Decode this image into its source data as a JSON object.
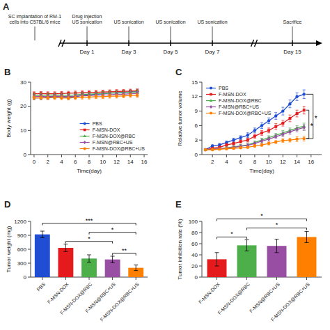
{
  "chart_data": [
    {
      "type": "timeline",
      "title": "A",
      "categories": [
        null,
        "Day 1",
        "Day 3",
        "Day 5",
        "Day 7",
        "Day 15"
      ],
      "annotations": [
        "SC implantation of RM-1\ncells into C57BL/6 mice",
        "Drug injection\nUS sonication",
        "US sonication",
        "US sonication",
        "US sonication",
        "Sacrifice"
      ]
    },
    {
      "type": "line",
      "title": "B",
      "xlabel": "Time(day)",
      "ylabel": "Body weight (g)",
      "x": [
        0,
        1,
        2,
        3,
        4,
        5,
        6,
        7,
        8,
        9,
        10,
        11,
        12,
        13,
        14,
        15
      ],
      "xlim": [
        -0.5,
        16.5
      ],
      "ylim": [
        0,
        30
      ],
      "xticks": [
        0,
        2,
        4,
        6,
        8,
        10,
        12,
        14,
        16
      ],
      "yticks": [
        0,
        10,
        20,
        30
      ],
      "grid": false,
      "legend": "lower right",
      "series": [
        {
          "name": "PBS",
          "color": "#1f4dd4",
          "marker": "circle",
          "values": [
            23.5,
            23.5,
            23.8,
            24.0,
            24.0,
            23.8,
            24.0,
            24.5,
            24.8,
            25.0,
            25.2,
            25.5,
            25.5,
            25.8,
            26.0,
            26.0
          ],
          "errors": [
            0.8,
            0.8,
            0.8,
            0.8,
            0.8,
            0.8,
            0.8,
            0.8,
            0.8,
            0.8,
            0.8,
            0.8,
            0.8,
            0.8,
            0.8,
            0.8
          ]
        },
        {
          "name": "F-MSN-DOX",
          "color": "#e41a1c",
          "marker": "square",
          "values": [
            25.2,
            25.3,
            25.2,
            25.2,
            25.3,
            25.4,
            25.5,
            25.6,
            25.7,
            25.8,
            25.9,
            26.0,
            26.1,
            26.2,
            26.3,
            26.4
          ],
          "errors": [
            0.8,
            0.8,
            0.8,
            0.8,
            0.8,
            0.8,
            0.8,
            0.8,
            0.8,
            0.8,
            0.8,
            0.8,
            0.8,
            0.8,
            0.8,
            0.8
          ]
        },
        {
          "name": "F-MSN-DOX@RBC",
          "color": "#4daf4a",
          "marker": "triangle",
          "values": [
            24.5,
            24.5,
            24.6,
            24.7,
            24.6,
            24.5,
            24.8,
            25.0,
            25.0,
            25.2,
            25.3,
            25.5,
            25.6,
            25.7,
            25.8,
            26.0
          ],
          "errors": [
            0.8,
            0.8,
            0.8,
            0.8,
            0.8,
            0.8,
            0.8,
            0.8,
            0.8,
            0.8,
            0.8,
            0.8,
            0.8,
            0.8,
            0.8,
            0.8
          ]
        },
        {
          "name": "F-MSN@RBC+US",
          "color": "#984ea3",
          "marker": "diamond",
          "values": [
            24.0,
            24.1,
            24.0,
            24.2,
            24.1,
            24.0,
            24.2,
            24.5,
            24.4,
            24.6,
            24.7,
            24.8,
            25.0,
            25.0,
            25.2,
            25.3
          ],
          "errors": [
            0.8,
            0.8,
            0.8,
            0.8,
            0.8,
            0.8,
            0.8,
            0.8,
            0.8,
            0.8,
            0.8,
            0.8,
            0.8,
            0.8,
            0.8,
            0.8
          ]
        },
        {
          "name": "F-MSN-DOX@RBC+US",
          "color": "#ff7f00",
          "marker": "circle",
          "values": [
            23.5,
            23.5,
            23.5,
            23.6,
            23.5,
            23.4,
            23.6,
            23.8,
            23.8,
            24.0,
            24.0,
            24.2,
            24.2,
            24.3,
            24.5,
            24.5
          ],
          "errors": [
            0.8,
            0.8,
            0.8,
            0.8,
            0.8,
            0.8,
            0.8,
            0.8,
            0.8,
            0.8,
            0.8,
            0.8,
            0.8,
            0.8,
            0.8,
            0.8
          ]
        }
      ]
    },
    {
      "type": "line",
      "title": "C",
      "xlabel": "Time(day)",
      "ylabel": "Relative tumor volume",
      "x": [
        1,
        2,
        3,
        4,
        5,
        6,
        7,
        8,
        9,
        10,
        11,
        12,
        13,
        14,
        15
      ],
      "xlim": [
        0.5,
        17.5
      ],
      "ylim": [
        0,
        15
      ],
      "xticks": [
        2,
        4,
        6,
        8,
        10,
        12,
        14,
        16
      ],
      "yticks": [
        0,
        3,
        6,
        9,
        12,
        15
      ],
      "grid": false,
      "legend": "upper left",
      "series": [
        {
          "name": "PBS",
          "color": "#1f4dd4",
          "marker": "circle",
          "values": [
            1.0,
            1.8,
            2.0,
            2.5,
            3.0,
            3.5,
            4.0,
            5.0,
            6.0,
            7.0,
            8.0,
            9.0,
            10.5,
            12.0,
            12.5
          ],
          "errors": [
            0.1,
            0.2,
            0.3,
            0.3,
            0.4,
            0.4,
            0.5,
            0.5,
            0.6,
            0.6,
            0.7,
            0.8,
            0.8,
            0.8,
            0.9
          ]
        },
        {
          "name": "F-MSN-DOX",
          "color": "#e41a1c",
          "marker": "square",
          "values": [
            1.0,
            1.3,
            1.5,
            2.0,
            2.3,
            2.7,
            3.0,
            3.8,
            4.5,
            5.0,
            5.8,
            6.5,
            7.5,
            8.5,
            9.2
          ],
          "errors": [
            0.1,
            0.2,
            0.2,
            0.3,
            0.3,
            0.3,
            0.4,
            0.4,
            0.5,
            0.5,
            0.6,
            0.6,
            0.7,
            0.7,
            0.8
          ]
        },
        {
          "name": "F-MSN-DOX@RBC",
          "color": "#4daf4a",
          "marker": "triangle",
          "values": [
            1.0,
            1.1,
            1.2,
            1.4,
            1.6,
            1.8,
            2.0,
            2.5,
            3.0,
            3.5,
            4.0,
            4.5,
            5.0,
            5.5,
            5.9
          ],
          "errors": [
            0.1,
            0.1,
            0.2,
            0.2,
            0.2,
            0.3,
            0.3,
            0.3,
            0.4,
            0.4,
            0.4,
            0.5,
            0.5,
            0.5,
            0.6
          ]
        },
        {
          "name": "F-MSN@RBC+US",
          "color": "#984ea3",
          "marker": "diamond",
          "values": [
            1.0,
            1.1,
            1.2,
            1.3,
            1.5,
            1.7,
            1.9,
            2.3,
            2.8,
            3.2,
            3.7,
            4.2,
            4.7,
            5.2,
            5.6
          ],
          "errors": [
            0.1,
            0.1,
            0.2,
            0.2,
            0.2,
            0.3,
            0.3,
            0.3,
            0.4,
            0.4,
            0.4,
            0.5,
            0.5,
            0.5,
            0.6
          ]
        },
        {
          "name": "F-MSN-DOX@RBC+US",
          "color": "#ff7f00",
          "marker": "circle",
          "values": [
            1.0,
            1.0,
            1.1,
            1.2,
            1.3,
            1.4,
            1.5,
            1.8,
            2.0,
            2.3,
            2.6,
            2.9,
            3.0,
            3.2,
            3.3
          ],
          "errors": [
            0.1,
            0.1,
            0.1,
            0.2,
            0.2,
            0.2,
            0.2,
            0.3,
            0.3,
            0.3,
            0.3,
            0.4,
            0.4,
            0.5,
            0.5
          ]
        }
      ],
      "annotations": [
        {
          "text": "*",
          "between": [
            "PBS",
            "F-MSN-DOX@RBC+US"
          ]
        },
        {
          "text": "*",
          "between": [
            "F-MSN-DOX",
            "F-MSN-DOX@RBC+US"
          ]
        }
      ]
    },
    {
      "type": "bar",
      "title": "D",
      "ylabel": "Tumor weight (mg)",
      "categories": [
        "PBS",
        "F-MSN-DOX",
        "F-MSN-DOX@RBC",
        "F-MSN@RBC+US",
        "F-MSN-DOX@RBC+US"
      ],
      "values": [
        920,
        630,
        400,
        380,
        200
      ],
      "errors": [
        70,
        80,
        80,
        70,
        60
      ],
      "colors": [
        "#1f4dd4",
        "#e41a1c",
        "#4daf4a",
        "#984ea3",
        "#ff7f00"
      ],
      "ylim": [
        0,
        1200
      ],
      "yticks": [
        0,
        300,
        600,
        900,
        1200
      ],
      "grid": false,
      "annotations": [
        {
          "text": "***",
          "between": [
            "PBS",
            "F-MSN-DOX@RBC+US"
          ]
        },
        {
          "text": "*",
          "between": [
            "F-MSN-DOX",
            "F-MSN@RBC+US"
          ]
        },
        {
          "text": "*",
          "between": [
            "F-MSN-DOX@RBC",
            "F-MSN-DOX@RBC+US"
          ]
        },
        {
          "text": "**",
          "between": [
            "F-MSN@RBC+US",
            "F-MSN-DOX@RBC+US"
          ]
        }
      ]
    },
    {
      "type": "bar",
      "title": "E",
      "ylabel": "Tumor inhibition rate (%)",
      "categories": [
        "F-MSN-DOX",
        "F-MSN-DOX@RBC",
        "F-MSN@RBC+US",
        "F-MSN-DOX@RBC+US"
      ],
      "values": [
        32,
        57,
        56,
        72
      ],
      "errors": [
        12,
        10,
        12,
        10
      ],
      "colors": [
        "#e41a1c",
        "#4daf4a",
        "#984ea3",
        "#ff7f00"
      ],
      "ylim": [
        0,
        100
      ],
      "yticks": [
        0,
        20,
        40,
        60,
        80,
        100
      ],
      "grid": false,
      "annotations": [
        {
          "text": "*",
          "between": [
            "F-MSN-DOX",
            "F-MSN-DOX@RBC"
          ]
        },
        {
          "text": "*",
          "between": [
            "F-MSN-DOX",
            "F-MSN-DOX@RBC+US"
          ]
        },
        {
          "text": "*",
          "between": [
            "F-MSN-DOX@RBC",
            "F-MSN-DOX@RBC+US"
          ]
        }
      ]
    }
  ]
}
